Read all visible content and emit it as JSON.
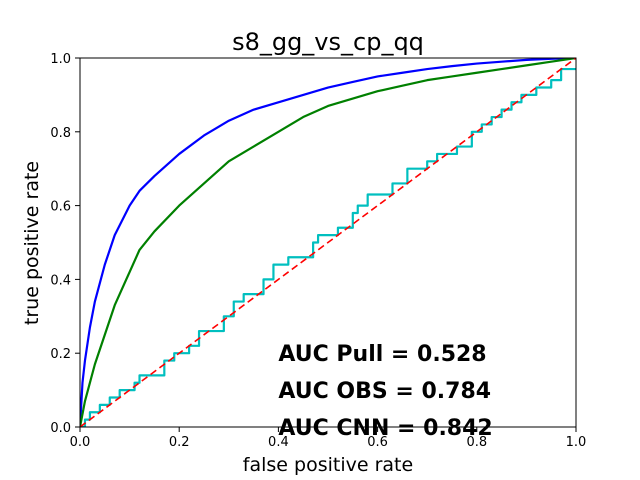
{
  "chart_data": {
    "type": "line",
    "title": "s8_gg_vs_cp_qq",
    "xlabel": "false positive rate",
    "ylabel": "true positive rate",
    "xlim": [
      0,
      1
    ],
    "ylim": [
      0,
      1
    ],
    "grid": false,
    "xticks": [
      "0.0",
      "0.2",
      "0.4",
      "0.6",
      "0.8",
      "1.0"
    ],
    "yticks": [
      "0.0",
      "0.2",
      "0.4",
      "0.6",
      "0.8",
      "1.0"
    ],
    "annotations": [
      "AUC Pull = 0.528",
      "AUC OBS = 0.784",
      "AUC CNN = 0.842"
    ],
    "series": [
      {
        "color": "#0000ff",
        "style": "solid",
        "x": [
          0,
          0.005,
          0.01,
          0.02,
          0.03,
          0.05,
          0.07,
          0.1,
          0.12,
          0.15,
          0.2,
          0.25,
          0.3,
          0.35,
          0.4,
          0.45,
          0.5,
          0.55,
          0.6,
          0.65,
          0.7,
          0.75,
          0.8,
          0.85,
          0.9,
          0.95,
          1.0
        ],
        "y": [
          0,
          0.12,
          0.18,
          0.27,
          0.34,
          0.44,
          0.52,
          0.6,
          0.64,
          0.68,
          0.74,
          0.79,
          0.83,
          0.86,
          0.88,
          0.9,
          0.92,
          0.935,
          0.95,
          0.96,
          0.97,
          0.978,
          0.985,
          0.99,
          0.995,
          0.998,
          1.0
        ]
      },
      {
        "color": "#008000",
        "style": "solid",
        "x": [
          0,
          0.01,
          0.02,
          0.03,
          0.05,
          0.07,
          0.1,
          0.12,
          0.15,
          0.2,
          0.25,
          0.3,
          0.35,
          0.4,
          0.45,
          0.5,
          0.55,
          0.6,
          0.65,
          0.7,
          0.75,
          0.8,
          0.85,
          0.9,
          0.95,
          1.0
        ],
        "y": [
          0,
          0.07,
          0.12,
          0.17,
          0.25,
          0.33,
          0.42,
          0.48,
          0.53,
          0.6,
          0.66,
          0.72,
          0.76,
          0.8,
          0.84,
          0.87,
          0.89,
          0.91,
          0.925,
          0.94,
          0.95,
          0.96,
          0.97,
          0.98,
          0.99,
          1.0
        ]
      },
      {
        "color": "#00bfbf",
        "style": "step",
        "x": [
          0,
          0.01,
          0.02,
          0.04,
          0.06,
          0.08,
          0.11,
          0.12,
          0.17,
          0.19,
          0.22,
          0.24,
          0.29,
          0.31,
          0.33,
          0.37,
          0.39,
          0.42,
          0.47,
          0.48,
          0.52,
          0.55,
          0.56,
          0.58,
          0.63,
          0.66,
          0.7,
          0.72,
          0.76,
          0.79,
          0.81,
          0.83,
          0.85,
          0.87,
          0.89,
          0.92,
          0.95,
          0.97,
          1.0
        ],
        "y": [
          0,
          0.02,
          0.04,
          0.06,
          0.08,
          0.1,
          0.12,
          0.14,
          0.18,
          0.2,
          0.22,
          0.26,
          0.3,
          0.34,
          0.36,
          0.4,
          0.44,
          0.46,
          0.5,
          0.52,
          0.54,
          0.58,
          0.6,
          0.63,
          0.66,
          0.7,
          0.72,
          0.74,
          0.76,
          0.8,
          0.82,
          0.84,
          0.86,
          0.88,
          0.9,
          0.92,
          0.94,
          0.97,
          0.97
        ]
      },
      {
        "color": "#ff0000",
        "style": "dashed",
        "x": [
          0,
          1
        ],
        "y": [
          0,
          1
        ]
      }
    ]
  }
}
